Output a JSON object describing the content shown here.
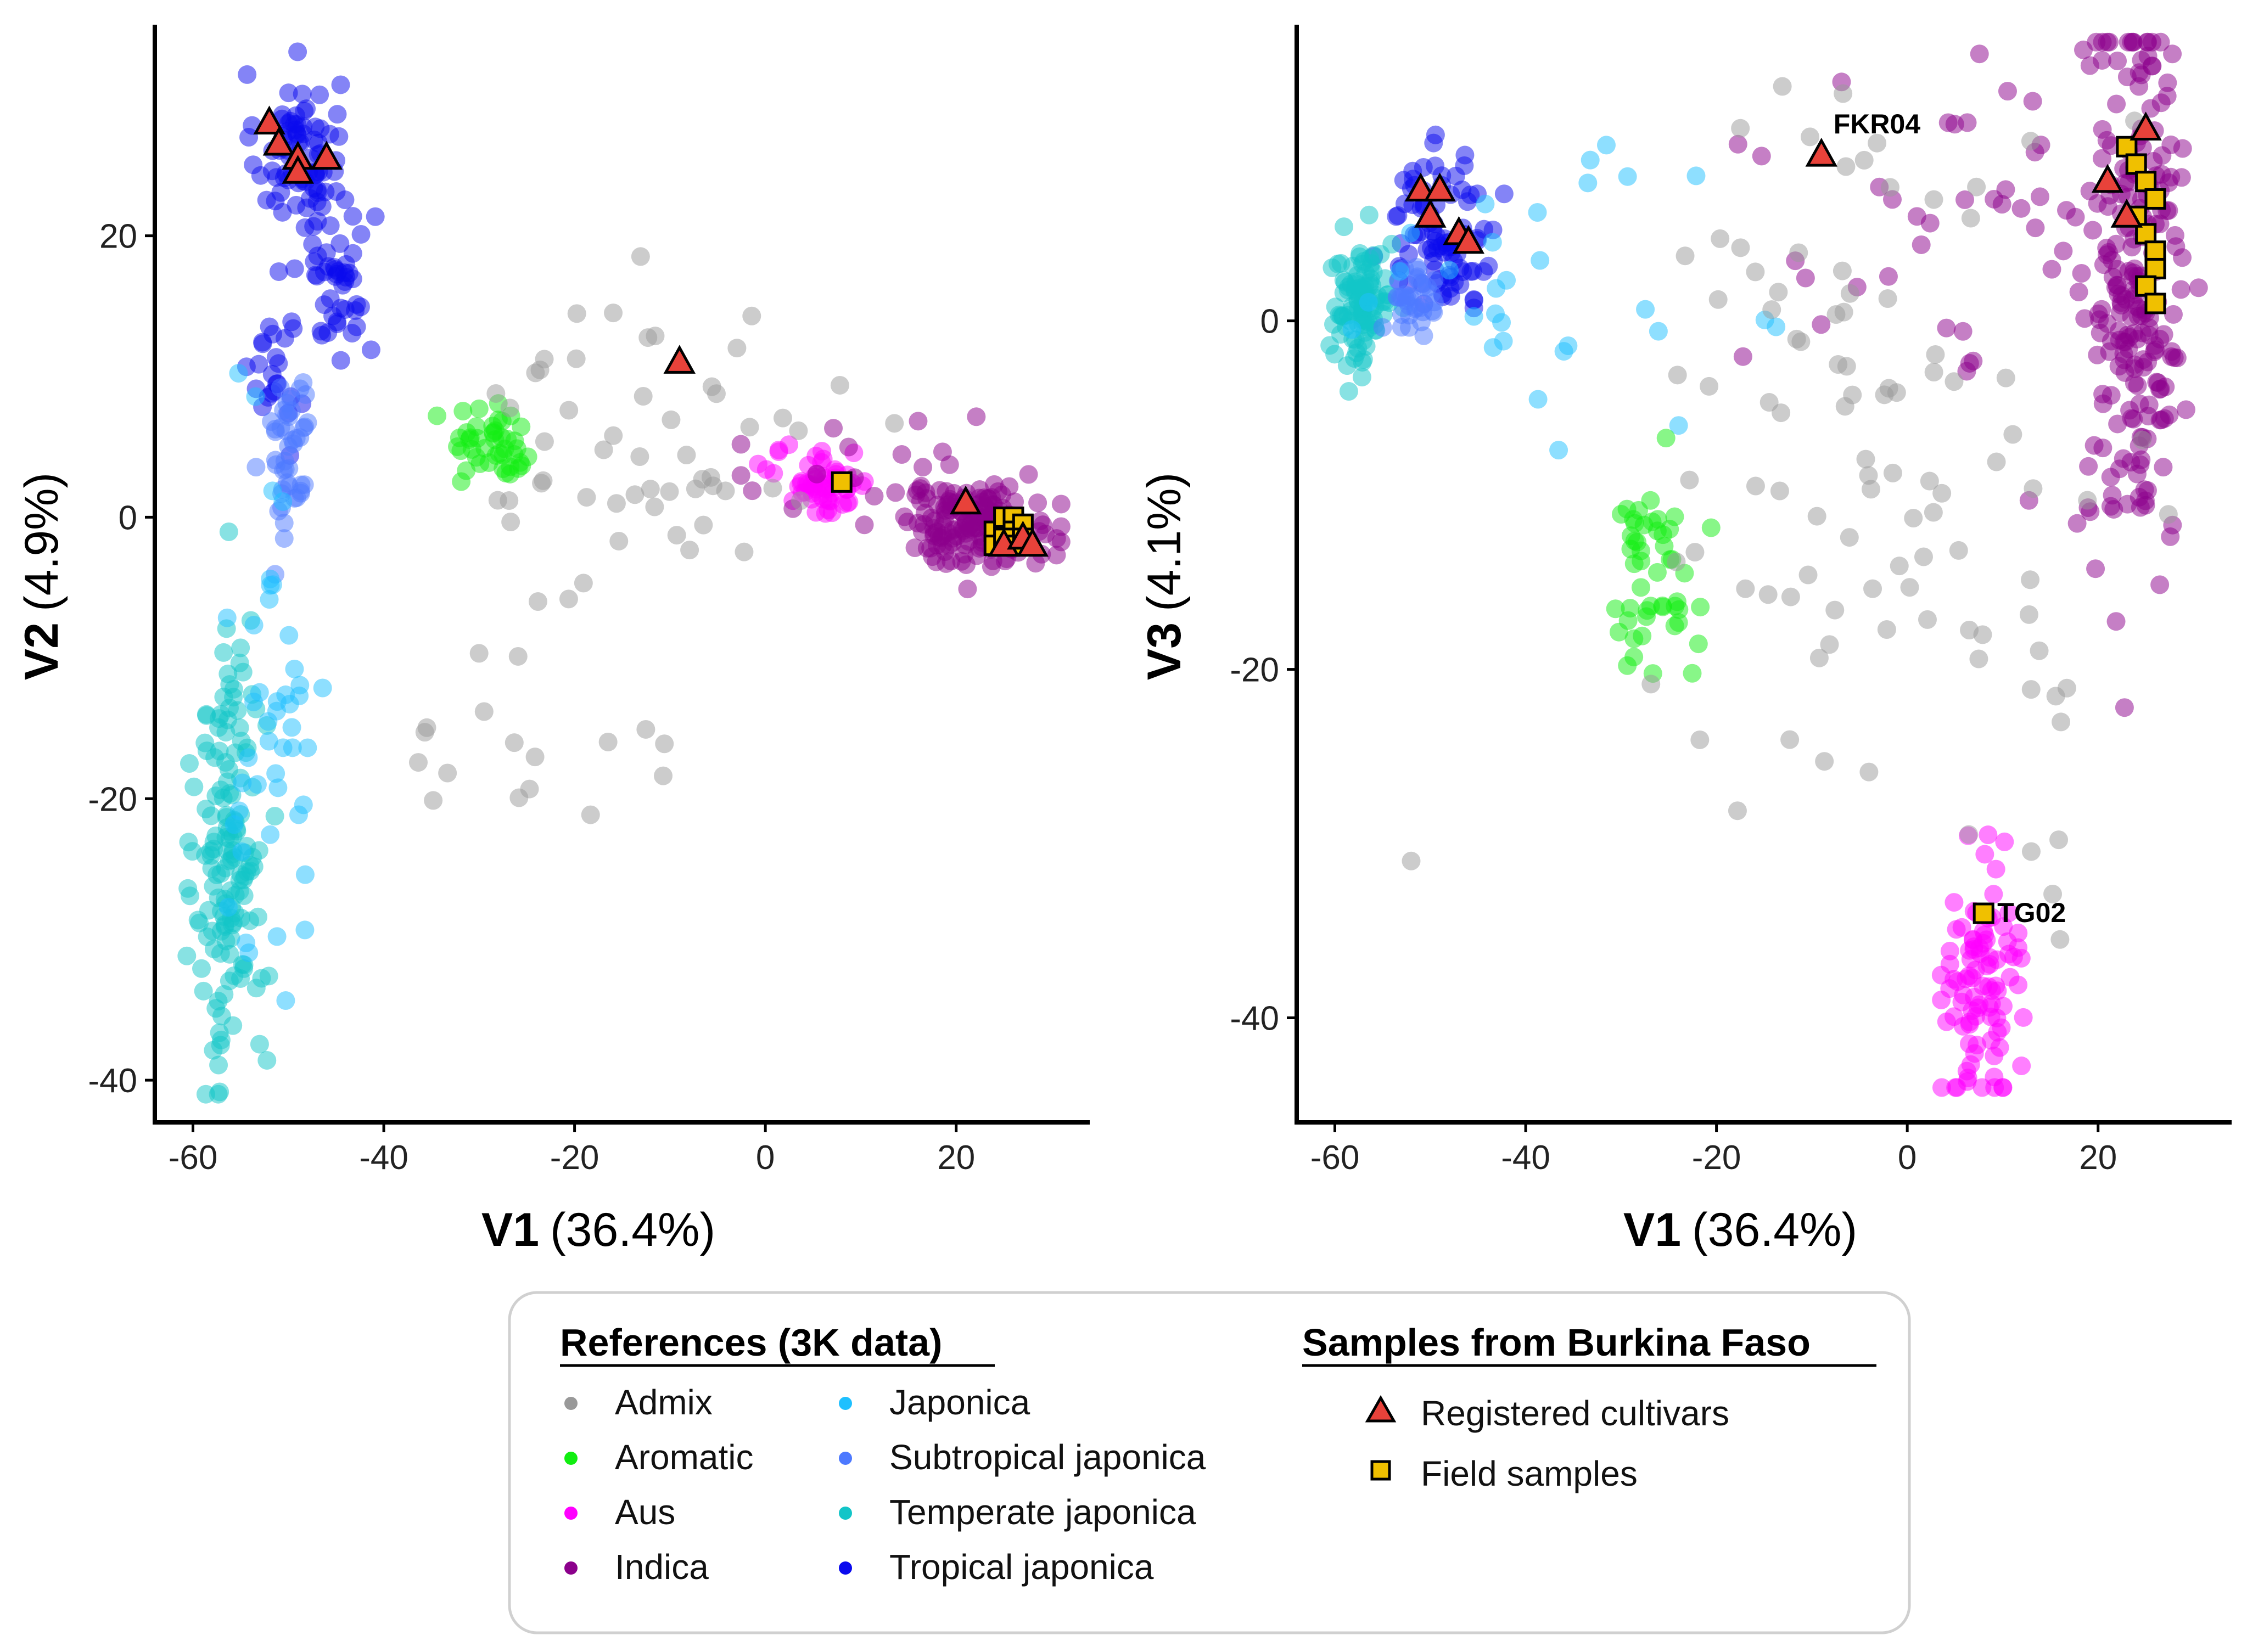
{
  "chart_data": [
    {
      "type": "scatter",
      "panel": "left",
      "xlabel": "V1",
      "xlabel_pct": "(36.4%)",
      "ylabel": "V2",
      "ylabel_pct": "(4.9%)",
      "xlim": [
        -64,
        34
      ],
      "ylim": [
        -43,
        35
      ],
      "xticks": [
        -60,
        -40,
        -20,
        0,
        20
      ],
      "yticks": [
        -40,
        -20,
        0,
        20
      ],
      "clusters": [
        {
          "group": "Tropical japonica",
          "cx": -49,
          "cy": 26,
          "sx": 2.2,
          "sy": 2.8,
          "n": 80
        },
        {
          "group": "Tropical japonica",
          "cx": -45,
          "cy": 17,
          "sx": 2.0,
          "sy": 2.8,
          "n": 45
        },
        {
          "group": "Tropical japonica",
          "cx": -51,
          "cy": 11,
          "sx": 1.4,
          "sy": 2.5,
          "n": 25
        },
        {
          "group": "Subtropical japonica",
          "cx": -50,
          "cy": 5,
          "sx": 1.2,
          "sy": 3.5,
          "n": 45
        },
        {
          "group": "Temperate japonica",
          "cx": -56,
          "cy": -24,
          "sx": 1.8,
          "sy": 8.5,
          "n": 150
        },
        {
          "group": "Japonica",
          "cx": -52,
          "cy": -15,
          "sx": 3.0,
          "sy": 9.0,
          "n": 45
        },
        {
          "group": "Aromatic",
          "cx": -28,
          "cy": 5,
          "sx": 2.5,
          "sy": 1.4,
          "n": 45
        },
        {
          "group": "Aus",
          "cx": 6,
          "cy": 2.5,
          "sx": 2.5,
          "sy": 1.2,
          "n": 60
        },
        {
          "group": "Indica",
          "cx": 22,
          "cy": -0.5,
          "sx": 4.0,
          "sy": 1.4,
          "n": 160
        },
        {
          "group": "Indica",
          "cx": 10,
          "cy": 4,
          "sx": 8.0,
          "sy": 2.5,
          "n": 18
        },
        {
          "group": "Admix",
          "cx": -12,
          "cy": 5,
          "sx": 9.0,
          "sy": 6.0,
          "n": 55
        },
        {
          "group": "Admix",
          "cx": -22,
          "cy": -16,
          "sx": 7.0,
          "sy": 4.0,
          "n": 16
        }
      ],
      "registered_cultivars": [
        [
          -52,
          28
        ],
        [
          -51,
          26.5
        ],
        [
          -49,
          25.5
        ],
        [
          -46,
          25.5
        ],
        [
          -49,
          24.5
        ],
        [
          -9,
          11
        ],
        [
          21,
          1
        ],
        [
          25,
          -2
        ],
        [
          27,
          -1.5
        ],
        [
          28,
          -2
        ]
      ],
      "field_samples": [
        [
          8,
          2.5
        ],
        [
          24,
          -1
        ],
        [
          25,
          0
        ],
        [
          26,
          0
        ],
        [
          26,
          -1
        ],
        [
          27,
          -0.5
        ],
        [
          24,
          -2
        ],
        [
          25,
          -1.5
        ],
        [
          26,
          -2
        ],
        [
          27,
          -1.5
        ]
      ],
      "annotations": []
    },
    {
      "type": "scatter",
      "panel": "right",
      "xlabel": "V1",
      "xlabel_pct": "(36.4%)",
      "ylabel": "V3",
      "ylabel_pct": "(4.1%)",
      "xlim": [
        -64,
        34
      ],
      "ylim": [
        -46,
        17
      ],
      "xticks": [
        -60,
        -40,
        -20,
        0,
        20
      ],
      "yticks": [
        -40,
        -20,
        0
      ],
      "clusters": [
        {
          "group": "Tropical japonica",
          "cx": -49,
          "cy": 5,
          "sx": 3.0,
          "sy": 2.2,
          "n": 90
        },
        {
          "group": "Temperate japonica",
          "cx": -57,
          "cy": 1,
          "sx": 1.6,
          "sy": 1.8,
          "n": 100
        },
        {
          "group": "Subtropical japonica",
          "cx": -52,
          "cy": 1,
          "sx": 1.6,
          "sy": 1.2,
          "n": 35
        },
        {
          "group": "Japonica",
          "cx": -40,
          "cy": 2,
          "sx": 9.0,
          "sy": 3.5,
          "n": 30
        },
        {
          "group": "Aromatic",
          "cx": -27,
          "cy": -15,
          "sx": 2.5,
          "sy": 3.5,
          "n": 50
        },
        {
          "group": "Aus",
          "cx": 8,
          "cy": -38,
          "sx": 2.0,
          "sy": 3.8,
          "n": 95
        },
        {
          "group": "Indica",
          "cx": 24,
          "cy": 2,
          "sx": 2.5,
          "sy": 8.0,
          "n": 220
        },
        {
          "group": "Indica",
          "cx": 6,
          "cy": 5,
          "sx": 12.0,
          "sy": 5.0,
          "n": 45
        },
        {
          "group": "Admix",
          "cx": -5,
          "cy": -3,
          "sx": 12.0,
          "sy": 10.0,
          "n": 80
        },
        {
          "group": "Admix",
          "cx": 12,
          "cy": -20,
          "sx": 5.0,
          "sy": 6.0,
          "n": 20
        }
      ],
      "registered_cultivars": [
        [
          -51,
          7.5
        ],
        [
          -49,
          7.5
        ],
        [
          -50,
          6
        ],
        [
          -47,
          5
        ],
        [
          -46,
          4.5
        ],
        [
          -9,
          9.5
        ],
        [
          21,
          8
        ],
        [
          23,
          6
        ],
        [
          25,
          11
        ]
      ],
      "field_samples": [
        [
          8,
          -34
        ],
        [
          23,
          10
        ],
        [
          24,
          9
        ],
        [
          25,
          8
        ],
        [
          26,
          7
        ],
        [
          24,
          6
        ],
        [
          25,
          5
        ],
        [
          26,
          4
        ],
        [
          26,
          3
        ],
        [
          25,
          2
        ],
        [
          26,
          1
        ]
      ],
      "annotations": [
        {
          "label": "FKR04",
          "x": -9,
          "y": 9.5
        },
        {
          "label": "TG02",
          "x": 8,
          "y": -34
        }
      ]
    }
  ],
  "legend": {
    "references_title": "References (3K data)",
    "references": [
      {
        "label": "Admix",
        "color": "#999999"
      },
      {
        "label": "Aromatic",
        "color": "#11ee11"
      },
      {
        "label": "Aus",
        "color": "#ff00ff"
      },
      {
        "label": "Indica",
        "color": "#8b008b"
      },
      {
        "label": "Japonica",
        "color": "#1ec0ff"
      },
      {
        "label": "Subtropical japonica",
        "color": "#4d79ff"
      },
      {
        "label": "Temperate japonica",
        "color": "#12c5c8"
      },
      {
        "label": "Tropical japonica",
        "color": "#0a0aee"
      }
    ],
    "samples_title": "Samples from Burkina Faso",
    "samples": [
      {
        "label": "Registered cultivars",
        "shape": "triangle",
        "color": "#e8423a"
      },
      {
        "label": "Field samples",
        "shape": "square",
        "color": "#f0c000"
      }
    ]
  }
}
